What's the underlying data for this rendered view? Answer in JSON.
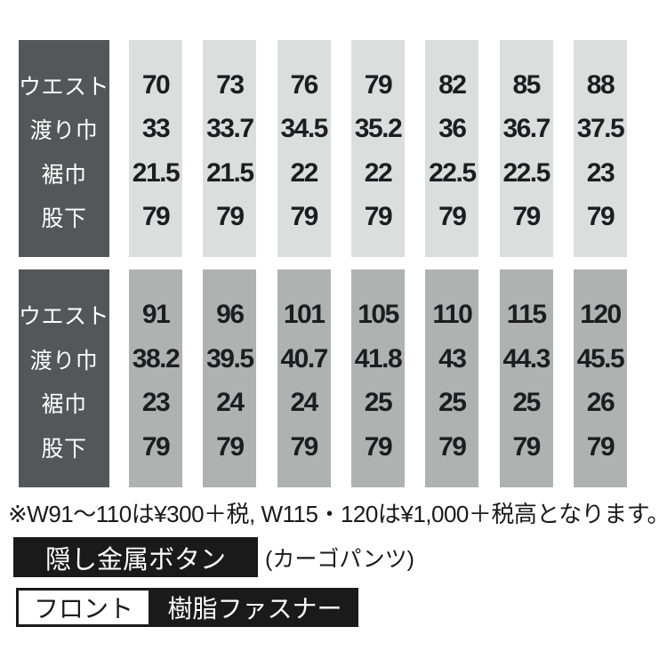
{
  "colors": {
    "page_bg": "#ffffff",
    "header_bg": "#54565a",
    "header_text": "#ffffff",
    "light_col_bg": "#dcdedd",
    "dark_col_bg": "#b0b2b1",
    "value_text": "#1d1d1f",
    "badge_bg": "#1a1a1a",
    "badge_text": "#ffffff",
    "note_text": "#1a1a1a"
  },
  "size_tables": [
    {
      "name": "waist-70-88",
      "row_labels": [
        "ウエスト",
        "渡り巾",
        "裾巾",
        "股下"
      ],
      "columns": [
        [
          "70",
          "33",
          "21.5",
          "79"
        ],
        [
          "73",
          "33.7",
          "21.5",
          "79"
        ],
        [
          "76",
          "34.5",
          "22",
          "79"
        ],
        [
          "79",
          "35.2",
          "22",
          "79"
        ],
        [
          "82",
          "36",
          "22.5",
          "79"
        ],
        [
          "85",
          "36.7",
          "22.5",
          "79"
        ],
        [
          "88",
          "37.5",
          "23",
          "79"
        ]
      ]
    },
    {
      "name": "waist-91-120",
      "row_labels": [
        "ウエスト",
        "渡り巾",
        "裾巾",
        "股下"
      ],
      "columns": [
        [
          "91",
          "38.2",
          "23",
          "79"
        ],
        [
          "96",
          "39.5",
          "24",
          "79"
        ],
        [
          "101",
          "40.7",
          "24",
          "79"
        ],
        [
          "105",
          "41.8",
          "25",
          "79"
        ],
        [
          "110",
          "43",
          "25",
          "79"
        ],
        [
          "115",
          "44.3",
          "25",
          "79"
        ],
        [
          "120",
          "45.5",
          "26",
          "79"
        ]
      ]
    }
  ],
  "note": "※W91〜110は¥300＋税, W115・120は¥1,000＋税高となります。",
  "badges": {
    "hidden_button_label": "隠し金属ボタン",
    "hidden_button_suffix": "(カーゴパンツ)",
    "front_label": "フロント",
    "zipper_label": "樹脂ファスナー"
  }
}
